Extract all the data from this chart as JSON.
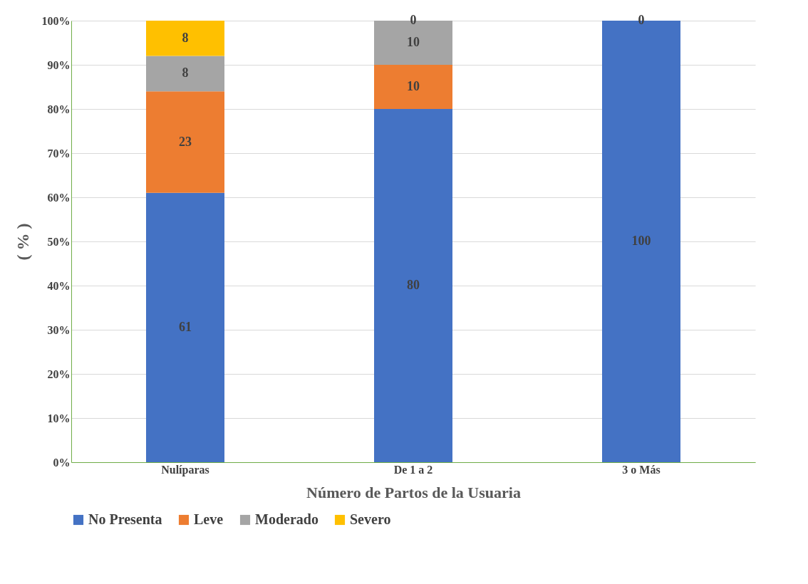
{
  "chart_data": {
    "type": "bar",
    "stacked": true,
    "xlabel": "Número de Partos de la Usuaria",
    "ylabel": "( % )",
    "categories": [
      "Nulíparas",
      "De 1 a 2",
      "3 o Más"
    ],
    "series": [
      {
        "name": "No Presenta",
        "color": "#4472c4",
        "values": [
          61,
          80,
          100
        ],
        "value_labels": [
          "61",
          "80",
          "100"
        ]
      },
      {
        "name": "Leve",
        "color": "#ed7d31",
        "values": [
          23,
          10,
          0
        ],
        "value_labels": [
          "23",
          "10",
          null
        ]
      },
      {
        "name": "Moderado",
        "color": "#a5a5a5",
        "values": [
          8,
          10,
          0
        ],
        "value_labels": [
          "8",
          "10",
          null
        ]
      },
      {
        "name": "Severo",
        "color": "#ffc000",
        "values": [
          8,
          0,
          0
        ],
        "value_labels": [
          "8",
          "0",
          "0"
        ]
      }
    ],
    "ylim": [
      0,
      100
    ],
    "yticks": [
      {
        "value": 0,
        "label": "0%"
      },
      {
        "value": 10,
        "label": "10%"
      },
      {
        "value": 20,
        "label": "20%"
      },
      {
        "value": 30,
        "label": "30%"
      },
      {
        "value": 40,
        "label": "40%"
      },
      {
        "value": 50,
        "label": "50%"
      },
      {
        "value": 60,
        "label": "60%"
      },
      {
        "value": 70,
        "label": "70%"
      },
      {
        "value": 80,
        "label": "80%"
      },
      {
        "value": 90,
        "label": "90%"
      },
      {
        "value": 100,
        "label": "100%"
      }
    ],
    "grid": "y",
    "legend": "bottom"
  }
}
